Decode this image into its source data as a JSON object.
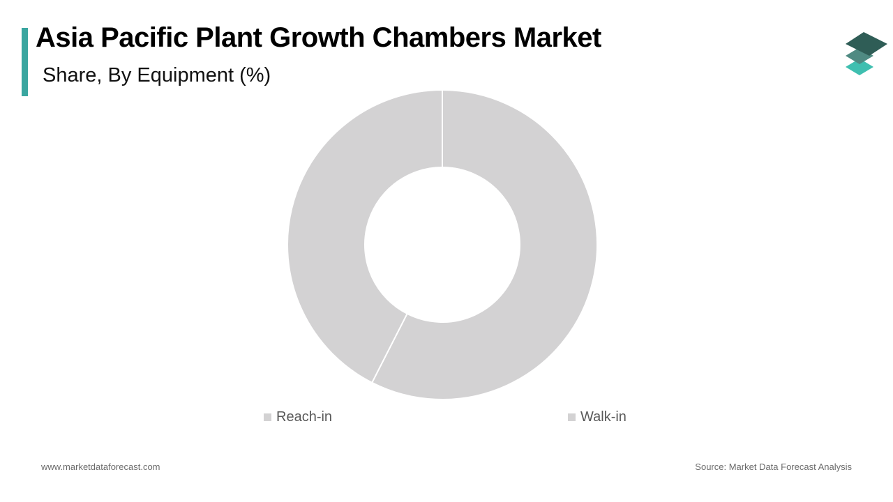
{
  "header": {
    "title": "Asia Pacific Plant Growth Chambers Market",
    "subtitle": "Share, By Equipment (%)",
    "accent_color": "#3aa6a0"
  },
  "logo": {
    "icon": "stacked-layers-logo",
    "colors": [
      "#2f5d56",
      "#4f8a82",
      "#3fbfb0"
    ]
  },
  "chart_data": {
    "type": "pie",
    "donut": true,
    "title": "",
    "categories": [
      "Reach-in",
      "Walk-in"
    ],
    "values": [
      42.5,
      57.5
    ],
    "slice_order": [
      "Walk-in",
      "Reach-in"
    ],
    "slice_color": "#d3d2d3",
    "slice_border": "#ffffff",
    "legend": "bottom",
    "legend_swatch_color": "#d3d2d3"
  },
  "footer": {
    "website": "www.marketdataforecast.com",
    "source": "Source: Market Data Forecast Analysis"
  }
}
